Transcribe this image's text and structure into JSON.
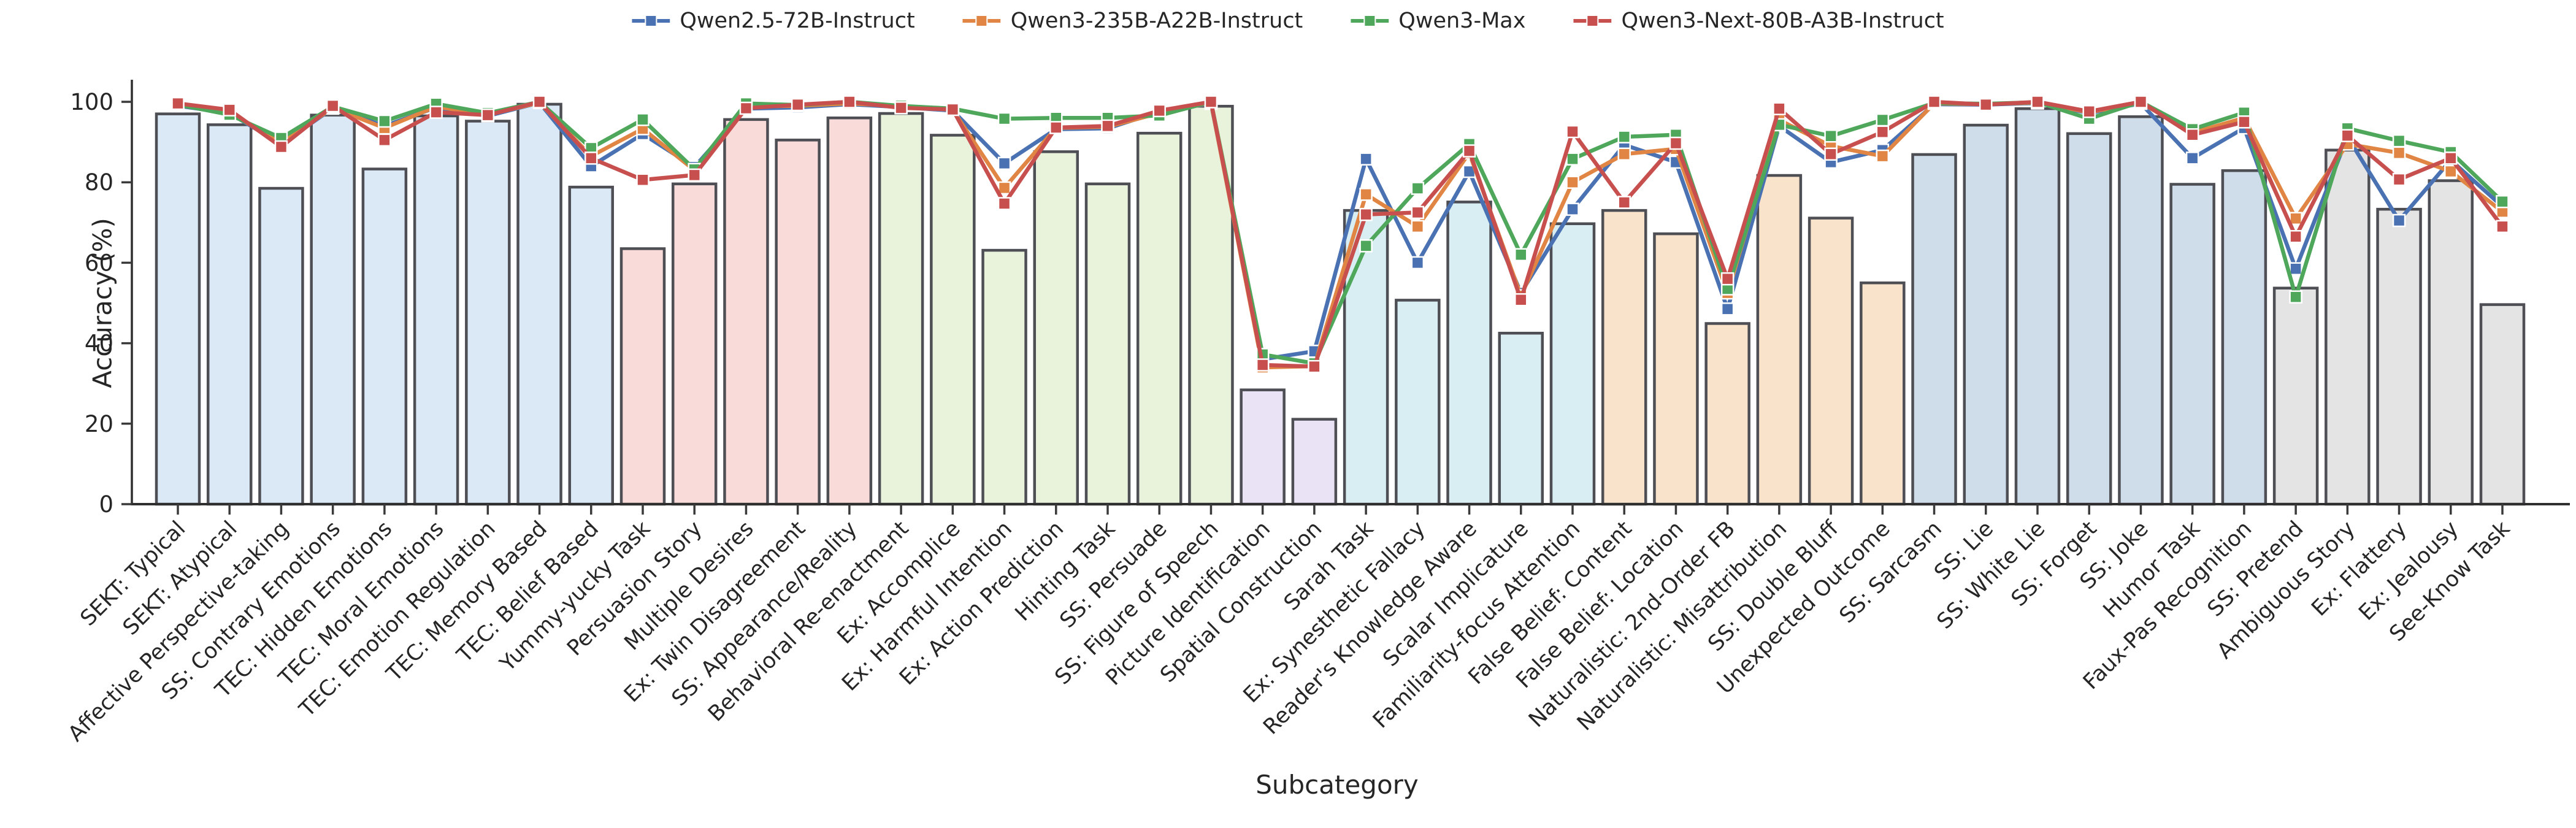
{
  "legend": {
    "items": [
      {
        "label": "Qwen2.5-72B-Instruct",
        "color": "#4a72b2"
      },
      {
        "label": "Qwen3-235B-A22B-Instruct",
        "color": "#e08543"
      },
      {
        "label": "Qwen3-Max",
        "color": "#4ea75a"
      },
      {
        "label": "Qwen3-Next-80B-A3B-Instruct",
        "color": "#c7504f"
      }
    ]
  },
  "axes": {
    "y_label": "Accuracy (%)",
    "x_label": "Subcategory",
    "y_ticks": [
      0,
      20,
      40,
      60,
      80,
      100
    ],
    "y_max": 100
  },
  "chart_data": {
    "type": "bar-line",
    "title": "",
    "xlabel": "Subcategory",
    "ylabel": "Accuracy (%)",
    "ylim": [
      0,
      105
    ],
    "grid": false,
    "legend_position": "top-center",
    "categories": [
      "SEKT: Typical",
      "SEKT: Atypical",
      "Affective Perspective-taking",
      "SS: Contrary Emotions",
      "TEC: Hidden Emotions",
      "TEC: Moral Emotions",
      "TEC: Emotion Regulation",
      "TEC: Memory Based",
      "TEC: Belief Based",
      "Yummy-yucky Task",
      "Persuasion Story",
      "Multiple Desires",
      "Ex: Twin Disagreement",
      "SS: Appearance/Reality",
      "Behavioral Re-enactment",
      "Ex: Accomplice",
      "Ex: Harmful Intention",
      "Ex: Action Prediction",
      "Hinting Task",
      "SS: Persuade",
      "SS: Figure of Speech",
      "Picture Identification",
      "Spatial Construction",
      "Sarah Task",
      "Ex: Synesthetic Fallacy",
      "Reader's Knowledge Aware",
      "Scalar Implicature",
      "Familiarity-focus Attention",
      "False Belief: Content",
      "False Belief: Location",
      "Naturalistic: 2nd-Order FB",
      "Naturalistic: Misattribution",
      "SS: Double Bluff",
      "Unexpected Outcome",
      "SS: Sarcasm",
      "SS: Lie",
      "SS: White Lie",
      "SS: Forget",
      "SS: Joke",
      "Humor Task",
      "Faux-Pas Recognition",
      "SS: Pretend",
      "Ambiguous Story",
      "Ex: Flattery",
      "Ex: Jealousy",
      "See-Know Task"
    ],
    "bar_values": [
      97,
      94.3,
      78.5,
      96.7,
      83.3,
      96.5,
      95.2,
      99.4,
      78.8,
      63.5,
      79.6,
      95.6,
      90.5,
      96,
      97.1,
      91.7,
      63.1,
      87.6,
      79.6,
      92.2,
      98.9,
      28.4,
      21.1,
      73,
      50.7,
      75.1,
      42.5,
      69.7,
      73,
      67.2,
      44.9,
      81.7,
      71.1,
      55,
      86.9,
      94.2,
      98.3,
      92.1,
      96.3,
      79.5,
      82.9,
      53.7,
      88,
      73.3,
      80.4,
      49.6
    ],
    "bar_groups": [
      {
        "count": 9,
        "fill": "#dbe8f6"
      },
      {
        "count": 5,
        "fill": "#f9dcda"
      },
      {
        "count": 7,
        "fill": "#e9f2db"
      },
      {
        "count": 2,
        "fill": "#eae3f5"
      },
      {
        "count": 5,
        "fill": "#d9eef3"
      },
      {
        "count": 6,
        "fill": "#f9e3cb"
      },
      {
        "count": 7,
        "fill": "#cfdce9"
      },
      {
        "count": 5,
        "fill": "#e4e4e5"
      }
    ],
    "bar_edge_color": "#4e4e55",
    "series": [
      {
        "name": "Qwen2.5-72B-Instruct",
        "color": "#4a72b2",
        "values": [
          99,
          97.2,
          89.5,
          98.4,
          94,
          98.6,
          96.5,
          99.8,
          84,
          92,
          83.8,
          98.3,
          98.6,
          99.4,
          98.7,
          97.8,
          84.7,
          93.2,
          93.4,
          97.6,
          99.6,
          36,
          38,
          85.8,
          60,
          82.7,
          52.5,
          73.3,
          89.3,
          85,
          48.5,
          94,
          85,
          88,
          99.4,
          99.3,
          99.7,
          97.2,
          99.6,
          86,
          93.5,
          58.5,
          91.3,
          70.5,
          85.5,
          74
        ]
      },
      {
        "name": "Qwen3-235B-A22B-Instruct",
        "color": "#e08543",
        "values": [
          99.2,
          97.3,
          89.8,
          98.5,
          93.5,
          98.8,
          96.8,
          99.8,
          86.5,
          93.3,
          83,
          98.8,
          99,
          99.6,
          98.9,
          98,
          78.6,
          93.5,
          93.8,
          97.2,
          99.8,
          34,
          34.3,
          77,
          69,
          87.3,
          51.8,
          80,
          87,
          88.3,
          52.5,
          95.5,
          89,
          86.5,
          99.6,
          99.4,
          99.8,
          97.4,
          99.8,
          92.3,
          96,
          71,
          89.5,
          87.3,
          82.7,
          72.7
        ]
      },
      {
        "name": "Qwen3-Max",
        "color": "#4ea75a",
        "values": [
          99.3,
          96.8,
          91,
          98.8,
          95.2,
          99.5,
          97.2,
          100,
          88.5,
          95.6,
          83.2,
          99.6,
          99.2,
          100,
          99,
          98.3,
          95.8,
          96,
          96,
          96.6,
          100,
          37.2,
          35,
          64.2,
          78.5,
          89.5,
          62,
          85.8,
          91.3,
          91.8,
          53.5,
          94.3,
          91.5,
          95.5,
          99.7,
          99.5,
          99.9,
          95.8,
          100,
          93.2,
          97.3,
          51.5,
          93.4,
          90.3,
          87.5,
          75.2
        ]
      },
      {
        "name": "Qwen3-Next-80B-A3B-Instruct",
        "color": "#c7504f",
        "values": [
          99.6,
          98,
          88.8,
          99,
          90.5,
          97.4,
          96.7,
          100,
          86,
          80.6,
          81.8,
          98.4,
          99.3,
          100,
          98.5,
          98.1,
          74.7,
          93.6,
          94,
          97.8,
          100,
          34.6,
          34.2,
          72,
          72.5,
          87.8,
          50.8,
          92.6,
          75,
          89.7,
          56,
          98.3,
          87,
          92.5,
          100,
          99.3,
          100,
          97.6,
          100,
          91.8,
          95,
          66.5,
          91.6,
          80.7,
          86,
          69
        ]
      }
    ]
  },
  "style": {
    "text_color": "#262626",
    "spine_color": "#2f2f2f",
    "tick_color": "#3a3a3a",
    "background": "#ffffff"
  }
}
